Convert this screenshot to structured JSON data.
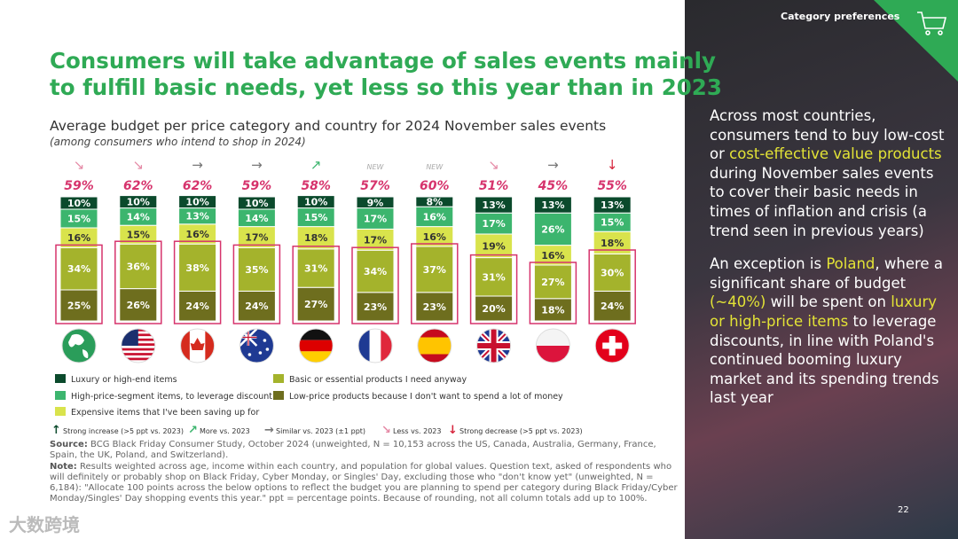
{
  "header": {
    "section": "Category preferences",
    "page_number": "22",
    "watermark": "大数跨境"
  },
  "title": [
    "Consumers will take advantage of sales events mainly",
    "to fulfill basic needs, yet less so this year than in 2023"
  ],
  "chart_data": {
    "type": "stacked_bar",
    "title": "Average budget per price category and country for 2024 November sales events",
    "subtitle": "(among consumers who intend to shop in 2024)",
    "categories": [
      null,
      null,
      null,
      null,
      null,
      null,
      null,
      null,
      null,
      null
    ],
    "ylim": [
      0,
      100
    ],
    "series": [
      {
        "name": "Low-price products because I don't want to spend a lot of money",
        "color": "#6e6e1e",
        "label_color": "#ffffff",
        "values": [
          25,
          26,
          24,
          24,
          27,
          23,
          23,
          20,
          18,
          24
        ],
        "value_labels": [
          "25%",
          "26%",
          "24%",
          "24%",
          "27%",
          "23%",
          "23%",
          "20%",
          "18%",
          "24%"
        ]
      },
      {
        "name": "Basic or essential products I need anyway",
        "color": "#a4b32c",
        "label_color": "#ffffff",
        "values": [
          34,
          36,
          38,
          35,
          31,
          34,
          37,
          31,
          27,
          30
        ],
        "value_labels": [
          "34%",
          "36%",
          "38%",
          "35%",
          "31%",
          "34%",
          "37%",
          "31%",
          "27%",
          "30%"
        ]
      },
      {
        "name": "Expensive items that I've been saving up for",
        "color": "#d9e34c",
        "label_color": "#333333",
        "values": [
          16,
          15,
          16,
          17,
          18,
          17,
          16,
          19,
          16,
          18
        ],
        "value_labels": [
          "16%",
          "15%",
          "16%",
          "17%",
          "18%",
          "17%",
          "16%",
          "19%",
          "16%",
          "18%"
        ]
      },
      {
        "name": "High-price-segment items, to leverage discount",
        "color": "#3cb56e",
        "label_color": "#ffffff",
        "values": [
          15,
          14,
          13,
          14,
          15,
          17,
          16,
          17,
          26,
          15
        ],
        "value_labels": [
          "15%",
          "14%",
          "13%",
          "14%",
          "15%",
          "17%",
          "16%",
          "17%",
          "26%",
          "15%"
        ]
      },
      {
        "name": "Luxury or high-end items",
        "color": "#0b4a2c",
        "label_color": "#ffffff",
        "values": [
          10,
          10,
          10,
          10,
          10,
          9,
          8,
          13,
          13,
          13
        ],
        "value_labels": [
          "10%",
          "10%",
          "10%",
          "10%",
          "10%",
          "9%",
          "8%",
          "13%",
          "13%",
          "13%"
        ]
      }
    ],
    "highlight": {
      "color": "#d6336c",
      "values": [
        59,
        62,
        62,
        59,
        58,
        57,
        60,
        51,
        45,
        55
      ],
      "value_labels": [
        "59%",
        "62%",
        "62%",
        "59%",
        "58%",
        "57%",
        "60%",
        "51%",
        "45%",
        "55%"
      ]
    },
    "trends": [
      "↘",
      "↘",
      "→",
      "→",
      "↗",
      "NEW",
      "NEW",
      "↘",
      "→",
      "↓"
    ],
    "trend_colors": [
      "#e58aa6",
      "#e58aa6",
      "#777777",
      "#777777",
      "#3cb56e",
      "#aaaaaa",
      "#aaaaaa",
      "#e58aa6",
      "#777777",
      "#d6243c"
    ],
    "trend_legend": [
      {
        "symbol": "↑",
        "label": "Strong increase (>5 ppt vs. 2023)",
        "color": "#0b4a2c"
      },
      {
        "symbol": "↗",
        "label": "More vs. 2023",
        "color": "#3cb56e"
      },
      {
        "symbol": "→",
        "label": "Similar vs. 2023 (±1 ppt)",
        "color": "#777777"
      },
      {
        "symbol": "↘",
        "label": "Less vs. 2023",
        "color": "#e58aa6"
      },
      {
        "symbol": "↓",
        "label": "Strong decrease (>5 ppt vs. 2023)",
        "color": "#d6243c"
      }
    ]
  },
  "source": {
    "label": "Source:",
    "text": " BCG Black Friday Consumer Study, October 2024 (unweighted, N = 10,153 across the US, Canada, Australia, Germany, France, Spain, the UK, Poland, and Switzerland)."
  },
  "note": {
    "label": "Note:",
    "text": " Results weighted across age, income within each country, and population for global values. Question text, asked of respondents who will definitely or probably shop on Black Friday, Cyber Monday, or Singles' Day, excluding those who \"don't know yet\" (unweighted, N = 6,184): \"Allocate 100 points across the below options to reflect the budget you are planning to spend per category during Black Friday/Cyber Monday/Singles' Day shopping events this year.\" ppt = percentage points. Because of rounding, not all column totals add up to 100%."
  },
  "sidebar": {
    "highlight_color": "#e3e336",
    "paragraphs": [
      [
        {
          "text": "Across most countries, consumers tend to buy low-cost or ",
          "highlight": false
        },
        {
          "text": "cost-effective value products",
          "highlight": true
        },
        {
          "text": " during November sales events to cover their basic needs in times of inflation and crisis (a trend seen in previous years)",
          "highlight": false
        }
      ],
      [
        {
          "text": "An exception is ",
          "highlight": false
        },
        {
          "text": "Poland",
          "highlight": true
        },
        {
          "text": ", where a significant share of budget ",
          "highlight": false
        },
        {
          "text": "(~40%)",
          "highlight": true
        },
        {
          "text": " will be spent on ",
          "highlight": false
        },
        {
          "text": "luxury or high-price items",
          "highlight": true
        },
        {
          "text": " to leverage discounts, in line with Poland's continued booming luxury market and its spending trends last year",
          "highlight": false
        }
      ]
    ]
  }
}
